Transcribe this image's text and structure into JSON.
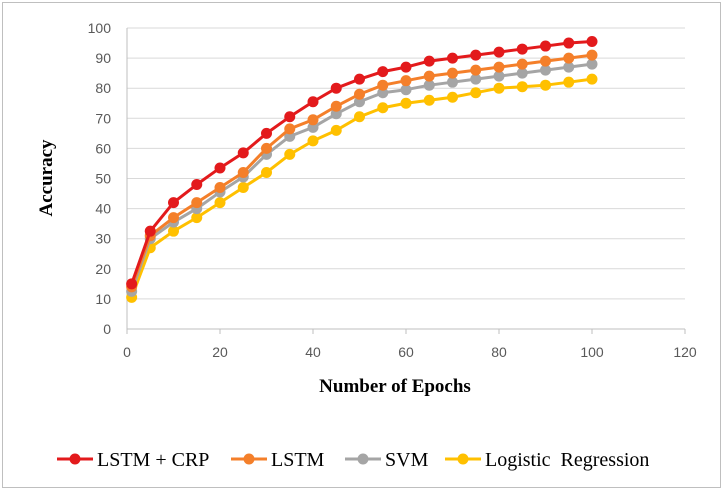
{
  "chart_data": {
    "type": "line",
    "title": "",
    "xlabel": "Number of Epochs",
    "ylabel": "Accuracy",
    "xlim": [
      0,
      120
    ],
    "ylim": [
      0,
      100
    ],
    "xticks": [
      0,
      20,
      40,
      60,
      80,
      100,
      120
    ],
    "yticks": [
      0,
      10,
      20,
      30,
      40,
      50,
      60,
      70,
      80,
      90,
      100
    ],
    "grid": "horizontal",
    "legend_position": "bottom",
    "x": [
      1,
      5,
      10,
      15,
      20,
      25,
      30,
      35,
      40,
      45,
      50,
      55,
      60,
      65,
      70,
      75,
      80,
      85,
      90,
      95,
      100
    ],
    "series": [
      {
        "name": "LSTM + CRP",
        "color": "#e31a1c",
        "values": [
          15,
          32.5,
          42,
          48,
          53.5,
          58.5,
          65,
          70.5,
          75.5,
          80,
          83,
          85.5,
          87,
          89,
          90,
          91,
          92,
          93,
          94,
          95,
          95.5
        ]
      },
      {
        "name": "LSTM",
        "color": "#f47f2a",
        "values": [
          14,
          31,
          37,
          42,
          47,
          52,
          60,
          66.5,
          69.5,
          74,
          78,
          81,
          82.5,
          84,
          85,
          86,
          87,
          88,
          89,
          90,
          91
        ]
      },
      {
        "name": "SVM",
        "color": "#a5a5a5",
        "values": [
          12.5,
          30,
          35.5,
          40,
          45.5,
          50.5,
          58,
          64,
          67,
          71.5,
          75.5,
          78.5,
          79.5,
          81,
          82,
          83,
          84,
          85,
          86,
          87,
          88
        ]
      },
      {
        "name": "Logistic  Regression",
        "color": "#ffc000",
        "values": [
          10.5,
          27,
          32.5,
          37,
          42,
          47,
          52,
          58,
          62.5,
          66,
          70.5,
          73.5,
          75,
          76,
          77,
          78.5,
          80,
          80.5,
          81,
          82,
          83
        ]
      }
    ]
  }
}
